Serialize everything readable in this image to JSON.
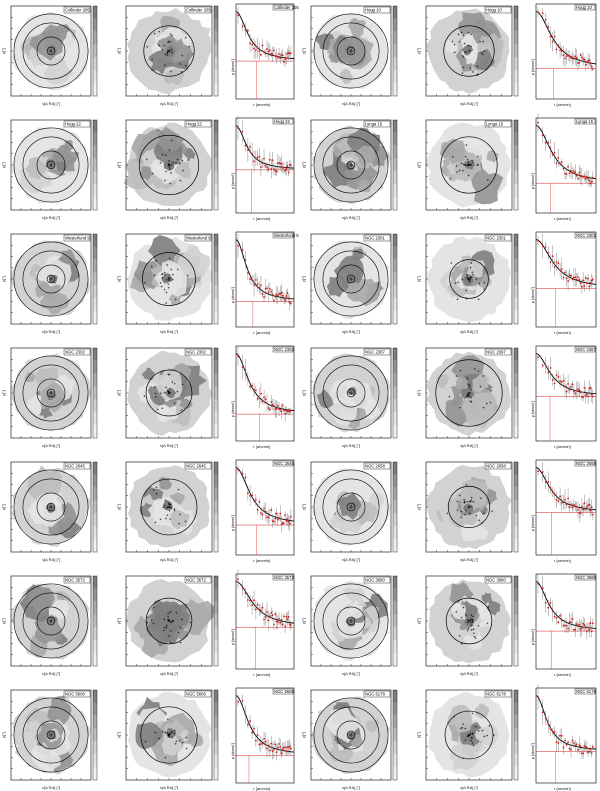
{
  "figure": {
    "rows": [
      {
        "left": {
          "a": "Collinder 205",
          "b": "Collinder 205",
          "c": "Collinder 205"
        },
        "right": {
          "a": "Hogg 10",
          "b": "Hogg 10",
          "c": "Hogg 10"
        }
      },
      {
        "left": {
          "a": "Hogg 22",
          "b": "Hogg 22",
          "c": "Hogg 22"
        },
        "right": {
          "a": "Lynga 15",
          "b": "Lynga 15",
          "c": "Lynga 15"
        }
      },
      {
        "left": {
          "a": "Westerlund 9",
          "b": "Westerlund 9",
          "c": "Westerlund 9"
        },
        "right": {
          "a": "NGC 2301",
          "b": "NGC 2301",
          "c": "NGC 2301"
        }
      },
      {
        "left": {
          "a": "NGC 2302",
          "b": "NGC 2302",
          "c": "NGC 2302"
        },
        "right": {
          "a": "NGC 2367",
          "b": "NGC 2367",
          "c": "NGC 2367"
        }
      },
      {
        "left": {
          "a": "NGC 2645",
          "b": "NGC 2645",
          "c": "NGC 2645"
        },
        "right": {
          "a": "NGC 2658",
          "b": "NGC 2658",
          "c": "NGC 2658"
        }
      },
      {
        "left": {
          "a": "NGC 3572",
          "b": "NGC 3572",
          "c": "NGC 3572"
        },
        "right": {
          "a": "NGC 3680",
          "b": "NGC 3680",
          "c": "NGC 3680"
        }
      },
      {
        "left": {
          "a": "NGC 5606",
          "b": "NGC 5606",
          "c": "NGC 5606"
        },
        "right": {
          "a": "NGC 6178",
          "b": "NGC 6178",
          "c": "NGC 6178"
        }
      }
    ],
    "axis_labels": {
      "map_x": "x[Δ RA] [°]",
      "map_y": "y[°]",
      "profile_y": "ρ [stars/']",
      "profile_x": "r [arcmin]"
    },
    "colors": {
      "data_points": "#d61f1f",
      "fit_curve": "#000000",
      "background_line": "#d61f1f",
      "frame": "#000000"
    }
  }
}
